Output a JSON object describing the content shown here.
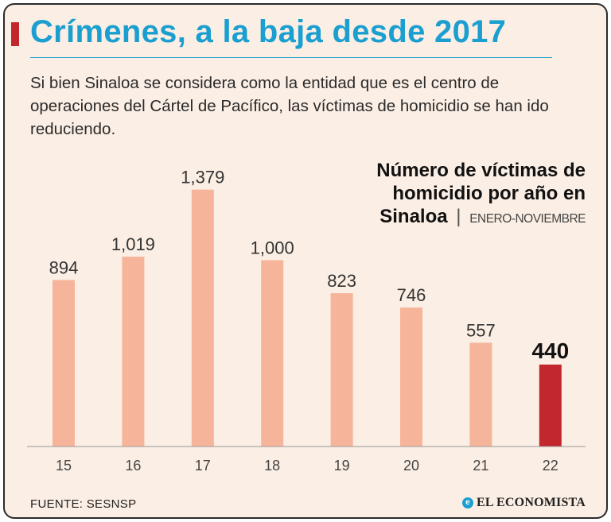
{
  "header": {
    "title": "Crímenes, a la baja desde 2017",
    "subtitle": "Si bien Sinaloa se considera como la entidad que es el centro de operaciones del Cártel de Pacífico, las víctimas de homicidio se han ido reduciendo."
  },
  "chart_data": {
    "type": "bar",
    "title_main": "Número de víctimas de homicidio por año en Sinaloa",
    "title_period": "ENERO-NOVIEMBRE",
    "categories": [
      "15",
      "16",
      "17",
      "18",
      "19",
      "20",
      "21",
      "22"
    ],
    "values": [
      894,
      1019,
      1379,
      1000,
      823,
      746,
      557,
      440
    ],
    "value_labels": [
      "894",
      "1,019",
      "1,379",
      "1,000",
      "823",
      "746",
      "557",
      "440"
    ],
    "highlight_index": 7,
    "ylim": [
      0,
      1450
    ],
    "xlabel": "",
    "ylabel": "",
    "colors": {
      "bar": "#f6b59a",
      "highlight": "#c1272d",
      "axis": "#999999"
    }
  },
  "footer": {
    "source": "FUENTE: SESNSP",
    "brand": "EL ECONOMISTA",
    "brand_icon": "e-logo-icon"
  }
}
